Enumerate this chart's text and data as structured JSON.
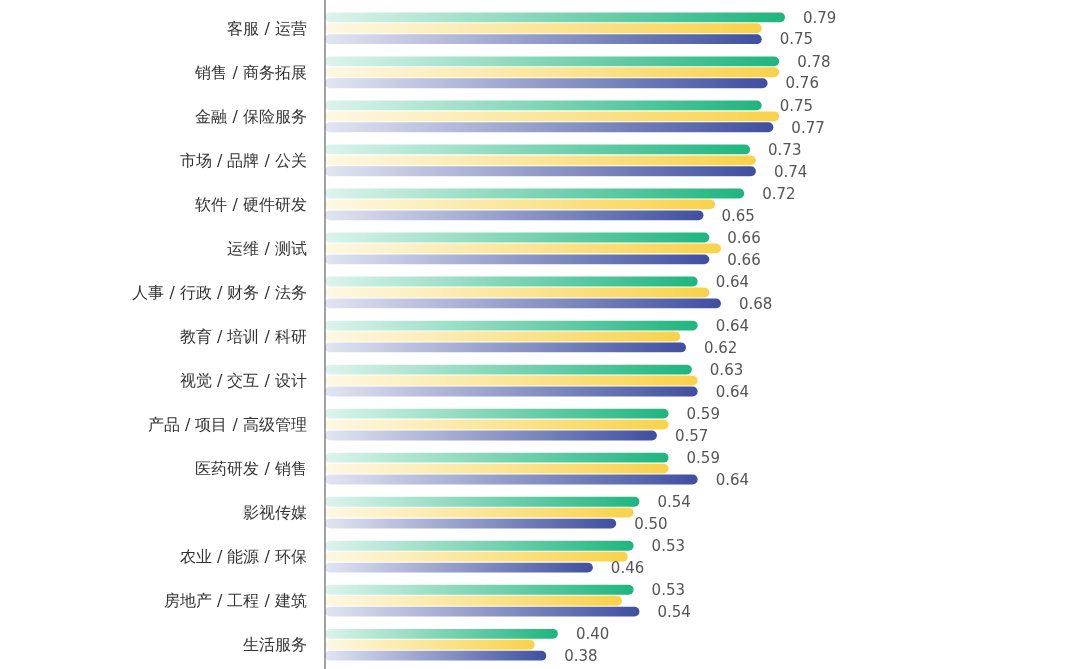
{
  "chart_data": {
    "type": "bar",
    "orientation": "horizontal",
    "categories": [
      "客服 / 运营",
      "销售 / 商务拓展",
      "金融 / 保险服务",
      "市场 / 品牌 / 公关",
      "软件 / 硬件研发",
      "运维 / 测试",
      "人事 / 行政 / 财务 / 法务",
      "教育 / 培训 / 科研",
      "视觉 / 交互 / 设计",
      "产品 / 项目 / 高级管理",
      "医药研发 / 销售",
      "影视传媒",
      "农业 / 能源 / 环保",
      "房地产 / 工程 / 建筑",
      "生活服务"
    ],
    "series": [
      {
        "color": "#1fb57f",
        "values": [
          0.79,
          0.78,
          0.75,
          0.73,
          0.72,
          0.66,
          0.64,
          0.64,
          0.63,
          0.59,
          0.59,
          0.54,
          0.53,
          0.53,
          0.4
        ],
        "value_labels": [
          "0.79",
          "0.78",
          "0.75",
          "0.73",
          "0.72",
          "0.66",
          "0.64",
          "0.64",
          "0.63",
          "0.59",
          "0.59",
          "0.54",
          "0.53",
          "0.53",
          "0.40"
        ]
      },
      {
        "color": "#f9d24a",
        "values": [
          0.75,
          0.78,
          0.78,
          0.74,
          0.67,
          0.68,
          0.66,
          0.61,
          0.64,
          0.59,
          0.59,
          0.53,
          0.52,
          0.51,
          0.36
        ]
      },
      {
        "color": "#3f4f9f",
        "values": [
          0.75,
          0.76,
          0.77,
          0.74,
          0.65,
          0.66,
          0.68,
          0.62,
          0.64,
          0.57,
          0.64,
          0.5,
          0.46,
          0.54,
          0.38
        ],
        "value_labels": [
          "0.75",
          "0.76",
          "0.77",
          "0.74",
          "0.65",
          "0.66",
          "0.68",
          "0.62",
          "0.64",
          "0.57",
          "0.64",
          "0.50",
          "0.46",
          "0.54",
          "0.38"
        ]
      }
    ]
  }
}
